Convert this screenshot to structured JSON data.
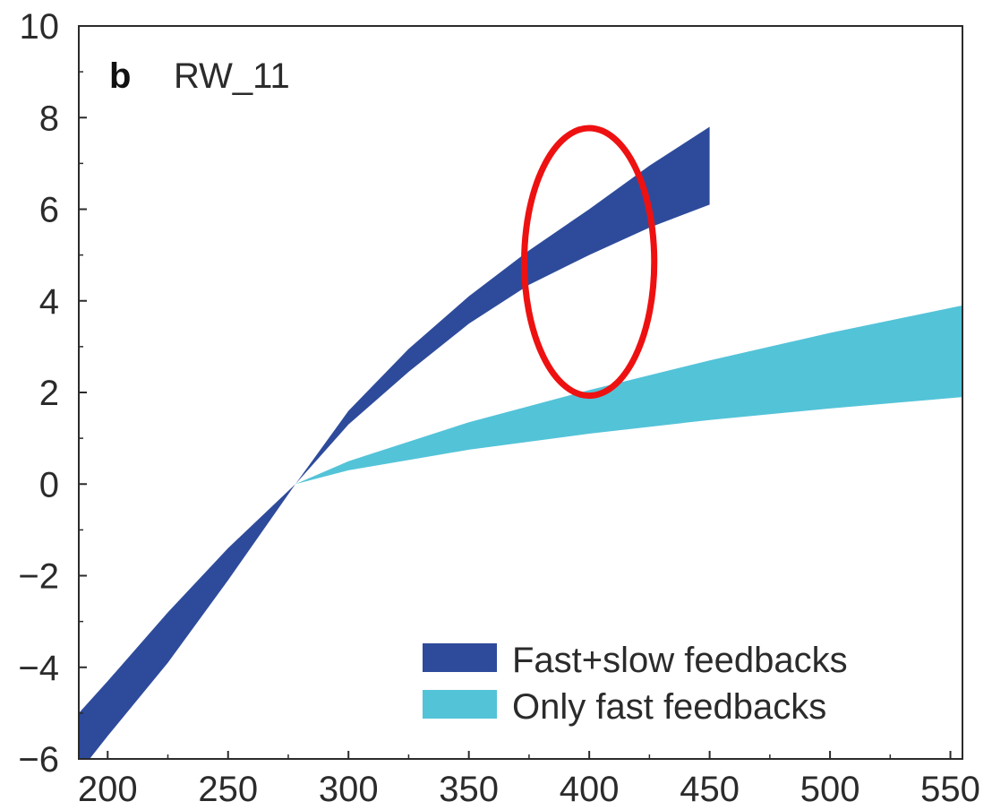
{
  "chart_data": {
    "type": "area",
    "panel_label": "b",
    "panel_title": "RW_11",
    "xlim": [
      188,
      555
    ],
    "ylim": [
      -6,
      10
    ],
    "xticks": [
      200,
      250,
      300,
      350,
      400,
      450,
      500,
      550
    ],
    "xtick_labels": [
      "200",
      "250",
      "300",
      "350",
      "400",
      "450",
      "500",
      "550"
    ],
    "yticks": [
      -6,
      -4,
      -2,
      0,
      2,
      4,
      6,
      8,
      10
    ],
    "ytick_labels": [
      "−6",
      "−4",
      "−2",
      "0",
      "2",
      "4",
      "6",
      "8",
      "10"
    ],
    "grid": false,
    "legend_position": "bottom-right",
    "series": [
      {
        "name": "Fast+slow feedbacks",
        "color": "#2e4b9b",
        "x": [
          188,
          200,
          225,
          250,
          278,
          300,
          325,
          350,
          375,
          400,
          425,
          450
        ],
        "lower": [
          -6.3,
          -5.5,
          -3.9,
          -2.1,
          0.0,
          1.3,
          2.45,
          3.5,
          4.35,
          5.0,
          5.6,
          6.1
        ],
        "upper": [
          -5.0,
          -4.3,
          -2.8,
          -1.4,
          0.0,
          1.6,
          2.95,
          4.1,
          5.1,
          6.0,
          6.95,
          7.8
        ]
      },
      {
        "name": "Only fast feedbacks",
        "color": "#53c3d8",
        "x": [
          278,
          300,
          350,
          400,
          450,
          500,
          555
        ],
        "lower": [
          0.0,
          0.3,
          0.75,
          1.1,
          1.4,
          1.65,
          1.9
        ],
        "upper": [
          0.0,
          0.5,
          1.35,
          2.05,
          2.7,
          3.3,
          3.9
        ]
      }
    ],
    "annotations": [
      {
        "type": "circle",
        "color": "#ee1111",
        "cx": 400,
        "cy": 4.85,
        "rx": 27,
        "ry": 2.92
      }
    ]
  }
}
